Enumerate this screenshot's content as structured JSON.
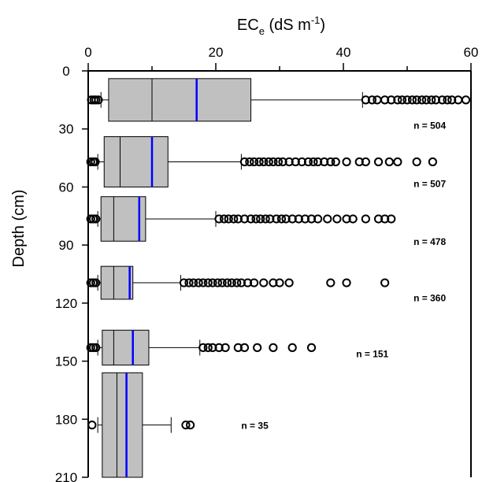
{
  "chart_data": {
    "type": "boxplot",
    "orientation": "horizontal",
    "x_axis": {
      "label_main": "EC",
      "label_sub": "e",
      "label_unit_open": " (dS m",
      "label_unit_sup": "-1",
      "label_unit_close": ")",
      "range": [
        0,
        60
      ],
      "ticks": [
        0,
        20,
        40,
        60
      ],
      "minor_ticks": [
        10,
        30,
        50
      ],
      "position": "top"
    },
    "y_axis": {
      "label": "Depth (cm)",
      "range": [
        0,
        210
      ],
      "ticks": [
        0,
        30,
        60,
        90,
        120,
        150,
        180,
        210
      ],
      "inverted": true
    },
    "colors": {
      "box_fill": "#c0c0c0",
      "mean_line": "#0000ff",
      "outline": "#000000"
    },
    "boxes": [
      {
        "depth_top": 4,
        "depth_bottom": 26,
        "q1": 3.2,
        "median": 10,
        "mean": 17,
        "q3": 25.5,
        "whisker_low": 2,
        "whisker_high": 43,
        "n_label": "n = 504",
        "n_x": 51,
        "n_depth": 30,
        "outliers": [
          0.5,
          0.9,
          1.2,
          1.6,
          43.5,
          44.5,
          45.3,
          46.5,
          47.5,
          48.5,
          49.2,
          50,
          50.8,
          51.5,
          52.3,
          53,
          53.8,
          54.5,
          55.5,
          56.3,
          57,
          58,
          59.2
        ]
      },
      {
        "depth_top": 34,
        "depth_bottom": 60,
        "q1": 2.5,
        "median": 5,
        "mean": 10,
        "q3": 12.5,
        "whisker_low": 1.5,
        "whisker_high": 24,
        "n_label": "n = 507",
        "n_x": 51,
        "n_depth": 60,
        "outliers": [
          0.4,
          0.8,
          1.1,
          24.5,
          25.3,
          26,
          26.8,
          27.5,
          28.3,
          29,
          29.8,
          30.5,
          31.5,
          32.5,
          33.5,
          34.5,
          35.3,
          36,
          37,
          38,
          38.8,
          40.5,
          42.5,
          43.5,
          45.5,
          47.2,
          48.5,
          51.5,
          54
        ]
      },
      {
        "depth_top": 65,
        "depth_bottom": 88,
        "q1": 2,
        "median": 4,
        "mean": 8,
        "q3": 9,
        "whisker_low": 1.5,
        "whisker_high": 20,
        "n_label": "n = 478",
        "n_x": 51,
        "n_depth": 90,
        "outliers": [
          0.4,
          0.8,
          1.2,
          20.5,
          21.3,
          22,
          22.8,
          23.5,
          24.5,
          25.5,
          26.3,
          27,
          27.8,
          28.5,
          29.5,
          30.3,
          31,
          32,
          33,
          34,
          35,
          36,
          37.5,
          39,
          40.5,
          41.5,
          43.5,
          45.5,
          46.5,
          47.5
        ]
      },
      {
        "depth_top": 101,
        "depth_bottom": 118,
        "q1": 2,
        "median": 4,
        "mean": 6.5,
        "q3": 7,
        "whisker_low": 1.5,
        "whisker_high": 14.5,
        "n_label": "n = 360",
        "n_x": 51,
        "n_depth": 119,
        "outliers": [
          0.4,
          0.8,
          1.2,
          15,
          15.8,
          16.5,
          17.3,
          18,
          18.8,
          19.5,
          20.3,
          21,
          21.8,
          22.5,
          23.3,
          24,
          25,
          26,
          27.5,
          29,
          30,
          31.5,
          38,
          40.5,
          46.5
        ]
      },
      {
        "depth_top": 134,
        "depth_bottom": 152,
        "q1": 2.2,
        "median": 4,
        "mean": 7,
        "q3": 9.5,
        "whisker_low": 1.5,
        "whisker_high": 17.5,
        "n_label": "n = 151",
        "n_x": 42,
        "n_depth": 148,
        "outliers": [
          0.4,
          0.8,
          1.2,
          18,
          18.8,
          19.5,
          20.5,
          21.5,
          23.5,
          24.5,
          26.5,
          29,
          32,
          35
        ]
      },
      {
        "depth_top": 156,
        "depth_bottom": 210,
        "q1": 2.2,
        "median": 4.5,
        "mean": 6,
        "q3": 8.5,
        "whisker_low": 1.5,
        "whisker_high": 13,
        "n_label": "n = 35",
        "n_x": 24,
        "n_depth": 185,
        "outliers": [
          0.6,
          15.3,
          16
        ]
      }
    ]
  }
}
